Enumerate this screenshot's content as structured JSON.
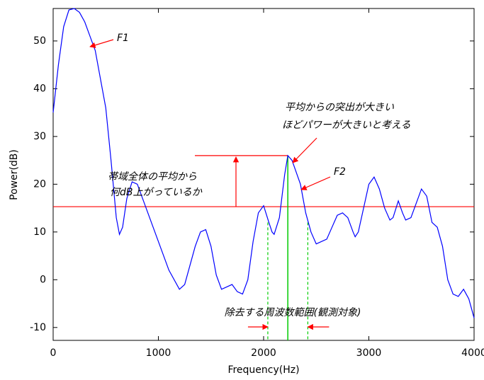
{
  "chart_data": {
    "type": "line",
    "xlabel": "Frequency(Hz)",
    "ylabel": "Power(dB)",
    "xlim": [
      0,
      4000
    ],
    "ylim": [
      -12.7,
      56.8
    ],
    "xticks": [
      0,
      1000,
      2000,
      3000,
      4000
    ],
    "yticks": [
      -10,
      0,
      10,
      20,
      30,
      40,
      50
    ],
    "series": [
      {
        "color": "#0000ff",
        "x": [
          0,
          50,
          100,
          150,
          200,
          250,
          300,
          400,
          500,
          550,
          600,
          630,
          660,
          700,
          750,
          800,
          850,
          900,
          1000,
          1100,
          1200,
          1250,
          1300,
          1350,
          1400,
          1450,
          1500,
          1550,
          1600,
          1650,
          1700,
          1750,
          1800,
          1850,
          1900,
          1950,
          2000,
          2050,
          2080,
          2100,
          2150,
          2200,
          2230,
          2270,
          2350,
          2400,
          2450,
          2500,
          2600,
          2650,
          2700,
          2750,
          2800,
          2850,
          2870,
          2900,
          2950,
          3000,
          3050,
          3100,
          3150,
          3200,
          3230,
          3280,
          3320,
          3350,
          3400,
          3450,
          3500,
          3550,
          3600,
          3650,
          3700,
          3750,
          3800,
          3850,
          3900,
          3950,
          4000
        ],
        "values": [
          35,
          45,
          53,
          56.5,
          56.8,
          56,
          54,
          48,
          36,
          25,
          13,
          9.5,
          11,
          17,
          20.5,
          20,
          17,
          14,
          8,
          2,
          -2,
          -1,
          3,
          7,
          10,
          10.5,
          7,
          1,
          -2,
          -1.5,
          -1,
          -2.5,
          -3,
          0,
          8,
          14,
          15.5,
          12,
          10,
          9.5,
          13,
          22,
          26,
          25,
          20,
          14,
          10,
          7.5,
          8.5,
          11,
          13.5,
          14,
          13,
          10,
          9,
          10,
          15,
          20,
          21.5,
          19,
          15,
          12.5,
          13,
          16.5,
          14,
          12.5,
          13,
          16,
          19,
          17.5,
          12,
          11,
          7,
          0,
          -3,
          -3.5,
          -2,
          -4,
          -8
        ]
      }
    ],
    "mean_level": 15.3,
    "peak": {
      "x": 2230,
      "y": 26
    },
    "band": [
      2040,
      2420
    ],
    "annotations": {
      "f1": "F1",
      "f2": "F2",
      "peak_note": [
        "平均からの突出が大きい",
        "ほどパワーが大きいと考える"
      ],
      "mean_note": [
        "帯域全体の平均から",
        "何dB上がっているか"
      ],
      "band_note": "除去する周波数範囲(観測対象)"
    }
  }
}
